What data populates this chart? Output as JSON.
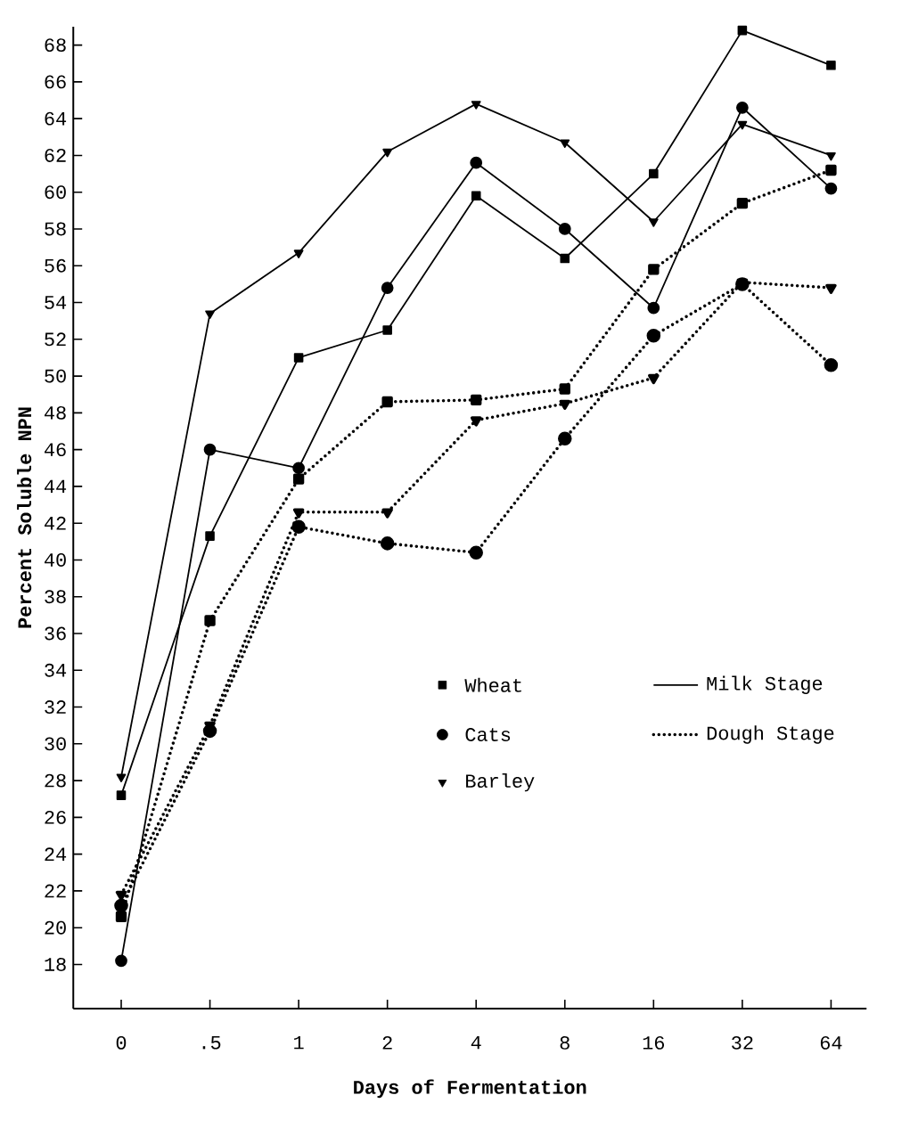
{
  "chart_data": {
    "type": "line",
    "xlabel": "Days of Fermentation",
    "ylabel": "Percent Soluble NPN",
    "categories": [
      "0",
      ".5",
      "1",
      "2",
      "4",
      "8",
      "16",
      "32",
      "64"
    ],
    "ylim": [
      15.6,
      69
    ],
    "yticks": [
      18,
      20,
      22,
      24,
      26,
      28,
      30,
      32,
      34,
      36,
      38,
      40,
      42,
      44,
      46,
      48,
      50,
      52,
      54,
      56,
      58,
      60,
      62,
      64,
      66,
      68
    ],
    "legend": "center",
    "grid": false,
    "annotations": [
      "Milk Stage",
      "Dough Stage"
    ],
    "series": [
      {
        "name": "Wheat",
        "color": "#000000",
        "marker": "square",
        "line_style": "solid",
        "values": [
          27.2,
          41.3,
          51.0,
          52.5,
          59.8,
          56.4,
          61.0,
          68.8,
          66.9
        ]
      },
      {
        "name": "Cats",
        "color": "#000000",
        "marker": "circle",
        "line_style": "solid",
        "values": [
          18.2,
          46.0,
          45.0,
          54.8,
          61.6,
          58.0,
          53.7,
          64.6,
          60.2
        ]
      },
      {
        "name": "Barley",
        "color": "#000000",
        "marker": "triangle",
        "line_style": "solid",
        "values": [
          28.2,
          53.4,
          56.7,
          62.2,
          64.8,
          62.7,
          58.4,
          63.7,
          62.0
        ]
      },
      {
        "color": "#000000",
        "marker": "square",
        "line_style": "dotted",
        "values": [
          20.6,
          36.7,
          44.4,
          48.6,
          48.7,
          49.3,
          55.8,
          59.4,
          61.2
        ]
      },
      {
        "color": "#000000",
        "marker": "circle",
        "line_style": "dotted",
        "values": [
          21.2,
          30.7,
          41.8,
          40.9,
          40.4,
          46.6,
          52.2,
          55.0,
          50.6
        ]
      },
      {
        "color": "#000000",
        "marker": "triangle",
        "line_style": "dotted",
        "values": [
          21.8,
          31.0,
          42.6,
          42.6,
          47.6,
          48.5,
          49.9,
          55.1,
          54.8
        ]
      }
    ]
  }
}
